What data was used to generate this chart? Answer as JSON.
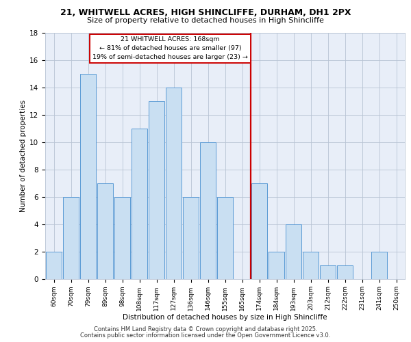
{
  "title1": "21, WHITWELL ACRES, HIGH SHINCLIFFE, DURHAM, DH1 2PX",
  "title2": "Size of property relative to detached houses in High Shincliffe",
  "xlabel": "Distribution of detached houses by size in High Shincliffe",
  "ylabel": "Number of detached properties",
  "bar_labels": [
    "60sqm",
    "70sqm",
    "79sqm",
    "89sqm",
    "98sqm",
    "108sqm",
    "117sqm",
    "127sqm",
    "136sqm",
    "146sqm",
    "155sqm",
    "165sqm",
    "174sqm",
    "184sqm",
    "193sqm",
    "203sqm",
    "212sqm",
    "222sqm",
    "231sqm",
    "241sqm",
    "250sqm"
  ],
  "bar_values": [
    2,
    6,
    15,
    7,
    6,
    11,
    13,
    14,
    6,
    10,
    6,
    0,
    7,
    2,
    4,
    2,
    1,
    1,
    0,
    2,
    0
  ],
  "bar_color": "#c9dff2",
  "bar_edgecolor": "#5b9bd5",
  "vline_color": "#cc0000",
  "annotation_title": "21 WHITWELL ACRES: 168sqm",
  "annotation_line1": "← 81% of detached houses are smaller (97)",
  "annotation_line2": "19% of semi-detached houses are larger (23) →",
  "annotation_box_color": "#ffffff",
  "annotation_box_edgecolor": "#cc0000",
  "ylim": [
    0,
    18
  ],
  "yticks": [
    0,
    2,
    4,
    6,
    8,
    10,
    12,
    14,
    16,
    18
  ],
  "grid_color": "#b8c4d4",
  "background_color": "#e8eef8",
  "footer1": "Contains HM Land Registry data © Crown copyright and database right 2025.",
  "footer2": "Contains public sector information licensed under the Open Government Licence v3.0."
}
